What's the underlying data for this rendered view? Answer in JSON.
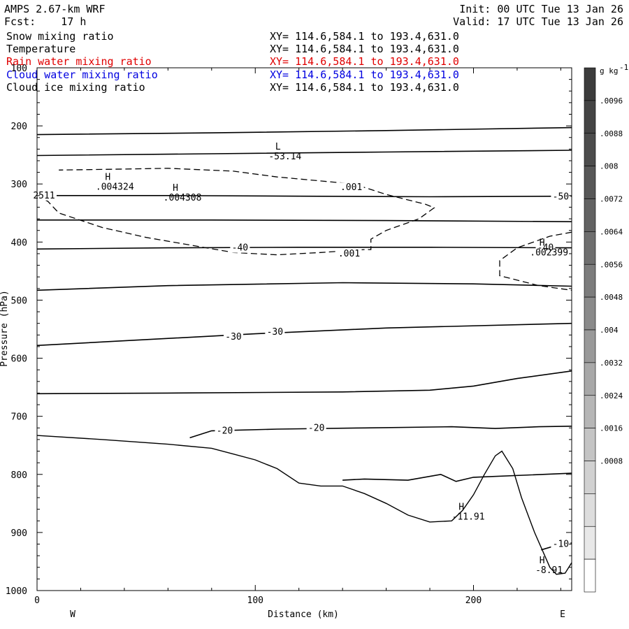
{
  "header": {
    "model": "AMPS 2.67-km WRF",
    "forecast": "Fcst:    17 h",
    "init": "Init: 00 UTC Tue 13 Jan 26",
    "valid": "Valid: 17 UTC Tue 13 Jan 26"
  },
  "fields": [
    {
      "name": "Snow mixing ratio",
      "xy": "XY= 114.6,584.1 to 193.4,631.0",
      "color": "#000000"
    },
    {
      "name": "Temperature",
      "xy": "XY= 114.6,584.1 to 193.4,631.0",
      "color": "#000000"
    },
    {
      "name": "Rain water mixing ratio",
      "xy": "XY= 114.6,584.1 to 193.4,631.0",
      "color": "#e00000"
    },
    {
      "name": "Cloud water mixing ratio",
      "xy": "XY= 114.6,584.1 to 193.4,631.0",
      "color": "#0000e0"
    },
    {
      "name": "Cloud ice mixing ratio",
      "xy": "XY= 114.6,584.1 to 193.4,631.0",
      "color": "#000000"
    }
  ],
  "chart_data": {
    "type": "line",
    "xlabel": "Distance (km)",
    "ylabel": "Pressure (hPa)",
    "xlim": [
      0,
      245
    ],
    "ylim": [
      1000,
      100
    ],
    "x_ticks": [
      0,
      100,
      200
    ],
    "y_ticks": [
      100,
      200,
      300,
      400,
      500,
      600,
      700,
      800,
      900,
      1000
    ],
    "left_end_label": "W",
    "right_end_label": "E",
    "temperature_contours": [
      {
        "level": "",
        "points": [
          [
            0,
            215
          ],
          [
            80,
            212
          ],
          [
            160,
            208
          ],
          [
            245,
            203
          ]
        ]
      },
      {
        "level": "",
        "points": [
          [
            0,
            251
          ],
          [
            80,
            248
          ],
          [
            160,
            245
          ],
          [
            245,
            242
          ]
        ]
      },
      {
        "level": "-50",
        "points": [
          [
            0,
            320
          ],
          [
            60,
            320
          ],
          [
            120,
            321
          ],
          [
            180,
            322
          ],
          [
            245,
            321
          ]
        ]
      },
      {
        "level": "",
        "points": [
          [
            0,
            362
          ],
          [
            80,
            362
          ],
          [
            160,
            363
          ],
          [
            245,
            365
          ]
        ]
      },
      {
        "level": "-40",
        "points": [
          [
            0,
            412
          ],
          [
            60,
            410
          ],
          [
            120,
            409
          ],
          [
            180,
            409
          ],
          [
            245,
            410
          ]
        ]
      },
      {
        "level": "",
        "points": [
          [
            0,
            483
          ],
          [
            60,
            475
          ],
          [
            140,
            470
          ],
          [
            200,
            472
          ],
          [
            245,
            476
          ]
        ]
      },
      {
        "level": "-30",
        "points": [
          [
            0,
            578
          ],
          [
            40,
            570
          ],
          [
            100,
            558
          ],
          [
            160,
            548
          ],
          [
            245,
            540
          ]
        ]
      },
      {
        "level": "",
        "points": [
          [
            0,
            661
          ],
          [
            60,
            660
          ],
          [
            140,
            658
          ],
          [
            180,
            655
          ],
          [
            200,
            648
          ],
          [
            220,
            635
          ],
          [
            245,
            622
          ]
        ]
      },
      {
        "level": "-20",
        "points": [
          [
            70,
            737
          ],
          [
            80,
            725
          ],
          [
            110,
            722
          ],
          [
            150,
            720
          ],
          [
            190,
            718
          ],
          [
            210,
            721
          ],
          [
            230,
            718
          ],
          [
            245,
            717
          ]
        ]
      },
      {
        "level": "",
        "points": [
          [
            140,
            810
          ],
          [
            150,
            808
          ],
          [
            170,
            810
          ],
          [
            185,
            800
          ],
          [
            192,
            812
          ],
          [
            200,
            805
          ],
          [
            245,
            798
          ]
        ]
      },
      {
        "level": "-10",
        "points": [
          [
            231,
            930
          ],
          [
            240,
            920
          ],
          [
            245,
            918
          ]
        ]
      }
    ],
    "terrain": [
      [
        0,
        733
      ],
      [
        30,
        740
      ],
      [
        60,
        748
      ],
      [
        80,
        755
      ],
      [
        90,
        765
      ],
      [
        100,
        775
      ],
      [
        110,
        790
      ],
      [
        120,
        815
      ],
      [
        130,
        820
      ],
      [
        140,
        820
      ],
      [
        150,
        833
      ],
      [
        160,
        850
      ],
      [
        170,
        870
      ],
      [
        180,
        882
      ],
      [
        190,
        880
      ],
      [
        195,
        862
      ],
      [
        200,
        835
      ],
      [
        205,
        800
      ],
      [
        210,
        768
      ],
      [
        213,
        760
      ],
      [
        218,
        790
      ],
      [
        222,
        840
      ],
      [
        228,
        900
      ],
      [
        235,
        960
      ],
      [
        238,
        972
      ],
      [
        242,
        970
      ],
      [
        245,
        952
      ]
    ],
    "snow_contours": [
      {
        "level": ".001",
        "points": [
          [
            0,
            320
          ],
          [
            5,
            330
          ],
          [
            10,
            350
          ],
          [
            30,
            375
          ],
          [
            50,
            392
          ],
          [
            70,
            405
          ],
          [
            90,
            418
          ],
          [
            110,
            422
          ],
          [
            130,
            418
          ],
          [
            150,
            413
          ],
          [
            153,
            413
          ],
          [
            153,
            395
          ],
          [
            160,
            380
          ],
          [
            175,
            360
          ],
          [
            182,
            341
          ],
          [
            178,
            335
          ],
          [
            160,
            318
          ],
          [
            145,
            300
          ],
          [
            110,
            288
          ],
          [
            90,
            278
          ],
          [
            60,
            273
          ],
          [
            30,
            275
          ],
          [
            10,
            276
          ]
        ]
      },
      {
        "level": "",
        "points": [
          [
            245,
            383
          ],
          [
            235,
            390
          ],
          [
            220,
            410
          ],
          [
            212,
            432
          ],
          [
            212,
            458
          ],
          [
            230,
            475
          ],
          [
            245,
            483
          ]
        ]
      }
    ],
    "annotations": [
      {
        "text": "L",
        "value": "-53.14",
        "x": 113,
        "p": 253
      },
      {
        "text": "H",
        "value": ".004324",
        "x": 35,
        "p": 305
      },
      {
        "text": "H",
        "value": ".004308",
        "x": 66,
        "p": 324
      },
      {
        "text": "H",
        "value": ".002399",
        "x": 234,
        "p": 418
      },
      {
        "text": "H",
        "value": "-11.91",
        "x": 197,
        "p": 873
      },
      {
        "text": "H",
        "value": "-8.91",
        "x": 234,
        "p": 965
      }
    ],
    "edge_labels": [
      {
        "value": ".001",
        "x": 144,
        "p": 306
      },
      {
        "value": ".001",
        "x": 143,
        "p": 420
      },
      {
        "value": "2511",
        "x": 0,
        "p": 320
      }
    ],
    "colorbar": {
      "unit": "g kg",
      "unit_sup": "-1",
      "labels": [
        ".0096",
        ".0088",
        ".008",
        ".0072",
        ".0064",
        ".0056",
        ".0048",
        ".004",
        ".0032",
        ".0024",
        ".0016",
        ".0008"
      ],
      "colors": [
        "#3c3c3c",
        "#444444",
        "#4c4c4c",
        "#575757",
        "#626262",
        "#6e6e6e",
        "#7c7c7c",
        "#8a8a8a",
        "#999999",
        "#a8a8a8",
        "#b6b6b6",
        "#c4c4c4",
        "#d1d1d1",
        "#dddddd",
        "#e8e8e8",
        "#ffffff"
      ]
    }
  }
}
